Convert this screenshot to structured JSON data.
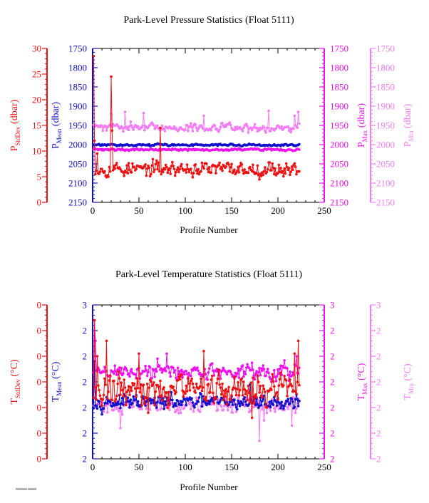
{
  "footer_code": "F0000000 000000",
  "colors": {
    "stddev": "#ee1111",
    "mean": "#1111cc",
    "max": "#ee11ee",
    "min": "#f47cf4",
    "frame": "#000000"
  },
  "chart_data": [
    {
      "type": "line",
      "title": "Park-Level Pressure Statistics (Float 5111)",
      "xlabel": "Profile Number",
      "xlim": [
        0,
        250
      ],
      "x_ticks": [
        0,
        50,
        100,
        150,
        200,
        250
      ],
      "axes": {
        "stddev": {
          "label_main": "P",
          "label_sub": "StdDev",
          "label_unit": " (dbar)",
          "lim": [
            0,
            30
          ],
          "ticks": [
            0,
            5,
            10,
            15,
            20,
            25,
            30
          ],
          "reversed": false
        },
        "mean": {
          "label_main": "P",
          "label_sub": "Mean",
          "label_unit": " (dbar)",
          "lim": [
            1750,
            2150
          ],
          "ticks": [
            1750,
            1800,
            1850,
            1900,
            1950,
            2000,
            2050,
            2100,
            2150
          ],
          "reversed": true
        },
        "max": {
          "label_main": "P",
          "label_sub": "Max",
          "label_unit": " (dbar)",
          "lim": [
            1750,
            2150
          ],
          "ticks": [
            1750,
            1800,
            1850,
            1900,
            1950,
            2000,
            2050,
            2100,
            2150
          ],
          "reversed": true
        },
        "min": {
          "label_main": "P",
          "label_sub": "Min",
          "label_unit": " (dbar)",
          "lim": [
            1750,
            2150
          ],
          "ticks": [
            1750,
            1800,
            1850,
            1900,
            1950,
            2000,
            2050,
            2100,
            2150
          ],
          "reversed": true
        }
      },
      "series": [
        {
          "key": "min",
          "axis": "min",
          "n": 223,
          "start": 1,
          "base": 1955,
          "amp": 12,
          "seed": 11,
          "spikes": [
            [
              20,
              1920
            ],
            [
              35,
              1915
            ],
            [
              55,
              1918
            ],
            [
              120,
              1925
            ],
            [
              190,
              1912
            ],
            [
              218,
              1925
            ],
            [
              222,
              1915
            ]
          ]
        },
        {
          "key": "mean",
          "axis": "mean",
          "n": 223,
          "start": 1,
          "base": 2001,
          "amp": 3,
          "seed": 23,
          "spikes": []
        },
        {
          "key": "max",
          "axis": "max",
          "n": 223,
          "start": 1,
          "base": 2013,
          "amp": 3,
          "seed": 37,
          "spikes": []
        },
        {
          "key": "stddev",
          "axis": "stddev",
          "n": 223,
          "start": 1,
          "base": 6.5,
          "amp": 1.6,
          "seed": 53,
          "spikes": [
            [
              1,
              28.5
            ],
            [
              2,
              12
            ],
            [
              20,
              24.5
            ],
            [
              21,
              14
            ],
            [
              73,
              14.5
            ],
            [
              5,
              9.5
            ]
          ]
        }
      ]
    },
    {
      "type": "line",
      "title": "Park-Level Temperature Statistics (Float 5111)",
      "xlabel": "Profile Number",
      "xlim": [
        0,
        250
      ],
      "x_ticks": [
        0,
        50,
        100,
        150,
        200,
        250
      ],
      "axes": {
        "stddev": {
          "label_main": "T",
          "label_sub": "StdDev",
          "label_unit": " (°C)",
          "lim": [
            0,
            6
          ],
          "ticks": [
            0,
            1,
            2,
            3,
            4,
            5,
            6
          ],
          "tick_labels": [
            "0",
            "0",
            "0",
            "0",
            "0",
            "0",
            "0"
          ],
          "reversed": false
        },
        "mean": {
          "label_main": "T",
          "label_sub": "Mean",
          "label_unit": " (°C)",
          "lim": [
            0,
            6
          ],
          "ticks": [
            0,
            1,
            2,
            3,
            4,
            5,
            6
          ],
          "tick_labels": [
            "2",
            "2",
            "2",
            "2",
            "2",
            "2",
            "3"
          ],
          "reversed": false
        },
        "max": {
          "label_main": "T",
          "label_sub": "Max",
          "label_unit": " (°C)",
          "lim": [
            0,
            6
          ],
          "ticks": [
            0,
            1,
            2,
            3,
            4,
            5,
            6
          ],
          "tick_labels": [
            "2",
            "2",
            "2",
            "2",
            "2",
            "2",
            "3"
          ],
          "reversed": false
        },
        "min": {
          "label_main": "T",
          "label_sub": "Min",
          "label_unit": " (°C)",
          "lim": [
            0,
            6
          ],
          "ticks": [
            0,
            1,
            2,
            3,
            4,
            5,
            6
          ],
          "tick_labels": [
            "2",
            "2",
            "2",
            "2",
            "2",
            "2",
            "3"
          ],
          "reversed": false
        }
      },
      "series": [
        {
          "key": "min",
          "axis": "min",
          "n": 223,
          "start": 1,
          "base": 2.1,
          "amp": 0.35,
          "seed": 71,
          "spikes": [
            [
              2,
              3.0
            ],
            [
              30,
              1.2
            ],
            [
              180,
              0.7
            ],
            [
              185,
              1.5
            ],
            [
              215,
              1.3
            ]
          ]
        },
        {
          "key": "max",
          "axis": "max",
          "n": 223,
          "start": 1,
          "base": 3.4,
          "amp": 0.35,
          "seed": 89,
          "spikes": [
            [
              2,
              5.4
            ],
            [
              3,
              4.6
            ],
            [
              70,
              3.9
            ],
            [
              80,
              4.1
            ],
            [
              175,
              3.1
            ],
            [
              220,
              4.0
            ]
          ]
        },
        {
          "key": "mean",
          "axis": "mean",
          "n": 223,
          "start": 1,
          "base": 2.2,
          "amp": 0.3,
          "seed": 97,
          "spikes": [
            [
              2,
              3.8
            ],
            [
              170,
              2.9
            ],
            [
              220,
              2.5
            ]
          ]
        },
        {
          "key": "stddev",
          "axis": "stddev",
          "n": 223,
          "start": 1,
          "base": 2.7,
          "amp": 0.7,
          "seed": 131,
          "spikes": [
            [
              2,
              5.4
            ],
            [
              5,
              4.0
            ],
            [
              15,
              4.6
            ],
            [
              50,
              4.1
            ],
            [
              60,
              1.8
            ],
            [
              120,
              4.2
            ],
            [
              172,
              1.6
            ],
            [
              218,
              4.1
            ],
            [
              222,
              4.6
            ]
          ]
        }
      ]
    }
  ]
}
